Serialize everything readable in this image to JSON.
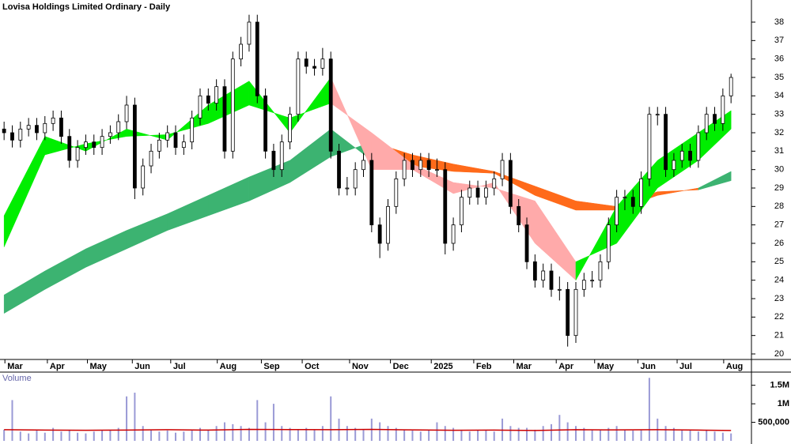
{
  "chart_data": [
    {
      "type": "candlestick",
      "title": "Lovisa Holdings Limited Ordinary - Daily",
      "xlim": [
        -0.5,
        91.5
      ],
      "ylim": [
        19.7,
        39.2
      ],
      "yticks": [
        20,
        21,
        22,
        23,
        24,
        25,
        26,
        27,
        28,
        29,
        30,
        31,
        32,
        33,
        34,
        35,
        36,
        37,
        38
      ],
      "xticks": [
        {
          "value": 0.1,
          "label": "Mar"
        },
        {
          "value": 5.3,
          "label": "Apr"
        },
        {
          "value": 10.2,
          "label": "May"
        },
        {
          "value": 15.7,
          "label": "Jun"
        },
        {
          "value": 20.4,
          "label": "Jul"
        },
        {
          "value": 26.1,
          "label": "Aug"
        },
        {
          "value": 31.5,
          "label": "Sep"
        },
        {
          "value": 36.5,
          "label": "Oct"
        },
        {
          "value": 42.3,
          "label": "Nov"
        },
        {
          "value": 47.3,
          "label": "Dec"
        },
        {
          "value": 52.3,
          "label": "2025"
        },
        {
          "value": 57.5,
          "label": "Feb"
        },
        {
          "value": 62.4,
          "label": "Mar"
        },
        {
          "value": 67.6,
          "label": "Apr"
        },
        {
          "value": 72.3,
          "label": "May"
        },
        {
          "value": 77.6,
          "label": "Jun"
        },
        {
          "value": 82.4,
          "label": "Jul"
        },
        {
          "value": 88.1,
          "label": "Aug"
        }
      ],
      "up_color": "#ffffff",
      "down_color": "#000000",
      "ohlc": [
        [
          32.2,
          32.6,
          31.6,
          32.0
        ],
        [
          32.0,
          32.4,
          31.2,
          31.6
        ],
        [
          31.6,
          32.6,
          31.2,
          32.2
        ],
        [
          32.2,
          32.8,
          31.8,
          32.4
        ],
        [
          32.4,
          32.8,
          31.6,
          32.0
        ],
        [
          32.0,
          32.9,
          31.6,
          32.5
        ],
        [
          32.5,
          33.2,
          32.1,
          32.8
        ],
        [
          32.8,
          33.2,
          31.4,
          31.8
        ],
        [
          31.8,
          32.2,
          30.1,
          30.5
        ],
        [
          30.5,
          31.6,
          30.1,
          31.2
        ],
        [
          31.2,
          31.9,
          30.8,
          31.5
        ],
        [
          31.5,
          31.9,
          30.8,
          31.2
        ],
        [
          31.2,
          32.2,
          30.8,
          31.8
        ],
        [
          31.8,
          32.4,
          31.4,
          32.0
        ],
        [
          32.0,
          33.0,
          31.6,
          32.6
        ],
        [
          32.6,
          34.0,
          32.2,
          33.5
        ],
        [
          33.5,
          33.9,
          28.4,
          29.0
        ],
        [
          29.0,
          30.6,
          28.6,
          30.2
        ],
        [
          30.2,
          31.4,
          29.8,
          31.0
        ],
        [
          31.0,
          32.0,
          30.6,
          31.6
        ],
        [
          31.6,
          32.4,
          31.2,
          32.0
        ],
        [
          32.0,
          32.4,
          30.8,
          31.2
        ],
        [
          31.2,
          31.9,
          30.8,
          31.5
        ],
        [
          31.5,
          33.2,
          31.1,
          32.8
        ],
        [
          32.8,
          34.4,
          32.4,
          34.0
        ],
        [
          34.0,
          34.4,
          33.2,
          33.6
        ],
        [
          33.6,
          34.9,
          33.2,
          34.5
        ],
        [
          34.5,
          34.9,
          30.6,
          31.0
        ],
        [
          31.0,
          36.4,
          30.6,
          36.0
        ],
        [
          36.0,
          37.2,
          35.6,
          36.8
        ],
        [
          36.8,
          38.4,
          36.4,
          38.0
        ],
        [
          38.0,
          38.4,
          33.6,
          34.0
        ],
        [
          34.0,
          34.4,
          30.6,
          31.0
        ],
        [
          31.0,
          31.4,
          29.6,
          30.0
        ],
        [
          30.0,
          31.9,
          29.6,
          31.5
        ],
        [
          31.5,
          33.4,
          31.1,
          33.0
        ],
        [
          33.0,
          36.4,
          32.6,
          36.0
        ],
        [
          36.0,
          36.4,
          35.2,
          35.6
        ],
        [
          35.6,
          36.0,
          35.1,
          35.5
        ],
        [
          35.5,
          36.6,
          35.1,
          36.0
        ],
        [
          36.0,
          36.4,
          30.6,
          31.0
        ],
        [
          31.0,
          31.4,
          28.6,
          29.0
        ],
        [
          29.0,
          29.6,
          28.6,
          29.0
        ],
        [
          29.0,
          30.4,
          28.6,
          30.0
        ],
        [
          30.0,
          30.9,
          29.6,
          30.5
        ],
        [
          30.5,
          30.9,
          26.6,
          27.0
        ],
        [
          27.0,
          27.4,
          25.2,
          26.0
        ],
        [
          26.0,
          28.4,
          25.6,
          28.0
        ],
        [
          28.0,
          29.9,
          27.6,
          29.5
        ],
        [
          29.5,
          30.9,
          29.1,
          30.5
        ],
        [
          30.5,
          30.9,
          29.6,
          30.0
        ],
        [
          30.0,
          30.9,
          29.6,
          30.5
        ],
        [
          30.5,
          30.9,
          29.6,
          30.0
        ],
        [
          30.0,
          30.6,
          29.6,
          30.0
        ],
        [
          30.0,
          30.4,
          25.4,
          26.0
        ],
        [
          26.0,
          27.4,
          25.6,
          27.0
        ],
        [
          27.0,
          28.9,
          26.6,
          28.5
        ],
        [
          28.5,
          29.4,
          28.1,
          29.0
        ],
        [
          29.0,
          29.4,
          28.1,
          28.5
        ],
        [
          28.5,
          29.4,
          28.1,
          29.0
        ],
        [
          29.0,
          29.9,
          28.6,
          29.5
        ],
        [
          29.5,
          30.9,
          29.1,
          30.5
        ],
        [
          30.5,
          30.9,
          27.6,
          28.0
        ],
        [
          28.0,
          28.4,
          26.6,
          27.0
        ],
        [
          27.0,
          27.4,
          24.6,
          25.0
        ],
        [
          25.0,
          25.4,
          23.6,
          24.0
        ],
        [
          24.0,
          24.9,
          23.6,
          24.5
        ],
        [
          24.5,
          24.9,
          23.1,
          23.5
        ],
        [
          23.5,
          24.2,
          22.9,
          23.5
        ],
        [
          23.5,
          23.9,
          20.4,
          21.0
        ],
        [
          21.0,
          23.9,
          20.6,
          23.5
        ],
        [
          23.5,
          24.4,
          23.1,
          24.0
        ],
        [
          24.0,
          24.5,
          23.6,
          24.0
        ],
        [
          24.0,
          25.4,
          23.6,
          25.0
        ],
        [
          25.0,
          27.4,
          24.6,
          27.0
        ],
        [
          27.0,
          28.9,
          26.6,
          28.5
        ],
        [
          28.5,
          28.9,
          27.8,
          28.5
        ],
        [
          28.5,
          28.9,
          27.6,
          28.0
        ],
        [
          28.0,
          29.9,
          27.6,
          29.5
        ],
        [
          29.5,
          33.4,
          29.1,
          33.0
        ],
        [
          33.0,
          33.4,
          32.4,
          33.0
        ],
        [
          33.0,
          33.4,
          29.6,
          30.0
        ],
        [
          30.0,
          30.9,
          29.6,
          30.5
        ],
        [
          30.5,
          31.4,
          30.1,
          31.0
        ],
        [
          31.0,
          31.4,
          30.1,
          30.5
        ],
        [
          30.5,
          32.4,
          30.1,
          32.0
        ],
        [
          32.0,
          33.4,
          31.6,
          33.0
        ],
        [
          33.0,
          33.4,
          32.1,
          32.5
        ],
        [
          32.5,
          34.4,
          32.1,
          34.0
        ],
        [
          34.0,
          35.2,
          33.6,
          35.0
        ]
      ],
      "ribbon_x": [
        0,
        5,
        10,
        15,
        20,
        25,
        30,
        35,
        40,
        45,
        50,
        55,
        60,
        65,
        70,
        75,
        80,
        85,
        89
      ],
      "ribbons": [
        {
          "up_color": "#3cb371",
          "down_color": "#ff6a1a",
          "fast": [
            23.2,
            24.5,
            25.7,
            26.7,
            27.6,
            28.6,
            29.6,
            30.5,
            32.2,
            30.5,
            30.2,
            29.9,
            29.8,
            28.6,
            27.8,
            27.8,
            28.6,
            29.0,
            29.9
          ],
          "slow": [
            22.2,
            23.5,
            24.7,
            25.7,
            26.7,
            27.5,
            28.3,
            29.3,
            30.7,
            31.5,
            30.8,
            30.3,
            29.9,
            29.1,
            28.3,
            28.0,
            28.8,
            28.9,
            29.4
          ]
        },
        {
          "up_color": "#00ee00",
          "down_color": "#ffaaaa",
          "fast": [
            27.5,
            31.8,
            31.0,
            32.2,
            31.6,
            33.5,
            34.8,
            32.0,
            35.0,
            30.0,
            30.0,
            28.7,
            29.3,
            26.0,
            24.0,
            28.0,
            30.5,
            32.0,
            33.2
          ],
          "slow": [
            25.8,
            30.8,
            31.4,
            31.8,
            31.9,
            32.5,
            33.5,
            32.8,
            33.6,
            32.0,
            30.3,
            29.3,
            29.0,
            28.3,
            25.0,
            26.0,
            29.0,
            30.5,
            32.2
          ]
        }
      ]
    },
    {
      "type": "bar",
      "title": "Volume",
      "color": "#9a9ad6",
      "avg_color": "#cc0000",
      "ylim": [
        0,
        1770000
      ],
      "yticks": [
        {
          "value": 500000,
          "label": "500,000"
        },
        {
          "value": 1000000,
          "label": "1M"
        },
        {
          "value": 1500000,
          "label": "1.5M"
        }
      ],
      "values": [
        300000,
        1100000,
        250000,
        200000,
        280000,
        220000,
        350000,
        250000,
        300000,
        220000,
        200000,
        250000,
        280000,
        300000,
        350000,
        1200000,
        1300000,
        400000,
        300000,
        250000,
        280000,
        220000,
        250000,
        300000,
        350000,
        300000,
        400000,
        500000,
        450000,
        400000,
        350000,
        1100000,
        500000,
        1000000,
        400000,
        350000,
        300000,
        350000,
        300000,
        400000,
        1200000,
        600000,
        400000,
        350000,
        300000,
        600000,
        500000,
        400000,
        350000,
        300000,
        280000,
        250000,
        300000,
        500000,
        400000,
        350000,
        300000,
        250000,
        280000,
        300000,
        250000,
        600000,
        400000,
        350000,
        350000,
        300000,
        400000,
        450000,
        700000,
        500000,
        400000,
        350000,
        300000,
        300000,
        350000,
        400000,
        300000,
        280000,
        300000,
        1700000,
        600000,
        400000,
        350000,
        300000,
        280000,
        250000,
        300000,
        250000,
        220000,
        200000
      ],
      "avg": [
        300000,
        290000,
        285000,
        290000,
        300000,
        290000,
        310000,
        305000,
        300000,
        310000,
        295000,
        285000,
        290000,
        280000,
        300000,
        295000,
        300000,
        290000,
        280000
      ]
    }
  ]
}
